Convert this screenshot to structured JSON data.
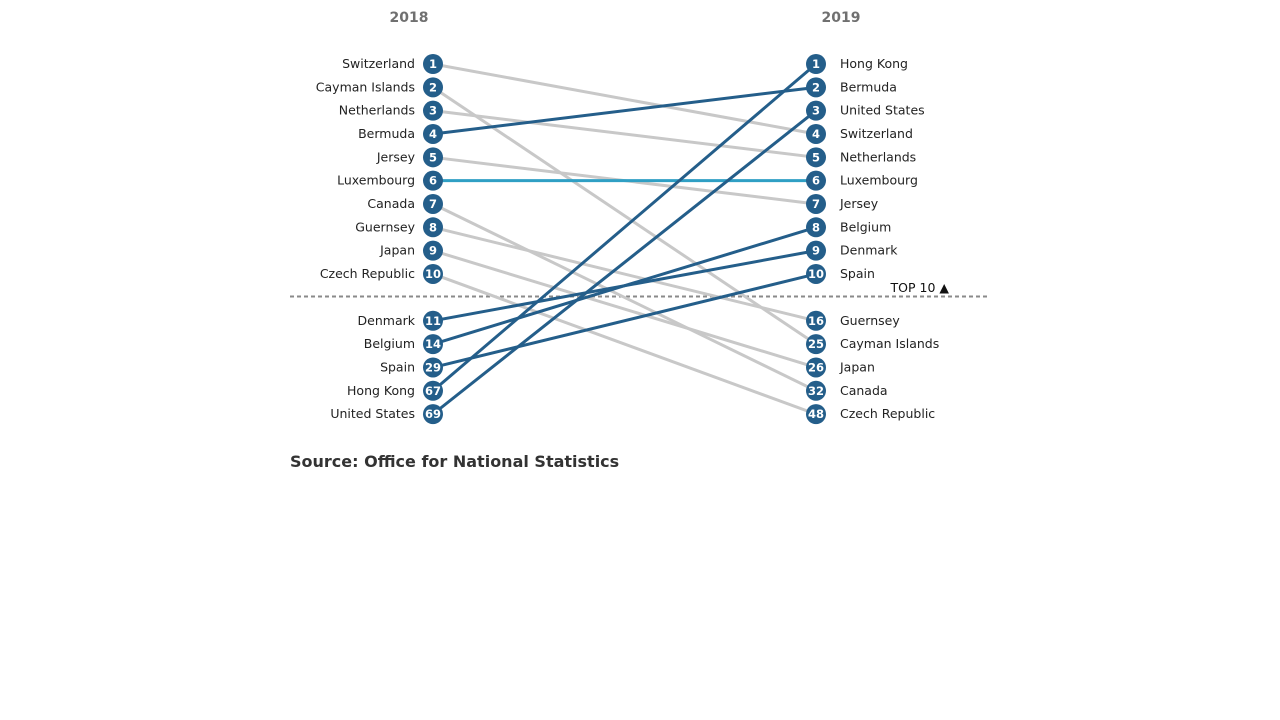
{
  "chart_data": {
    "type": "slope",
    "left_label": "2018",
    "right_label": "2019",
    "threshold_label": "TOP 10 ▲",
    "threshold_rank": 10,
    "source": "Source: Office for National Statistics",
    "colors": {
      "up": "#245e8a",
      "down": "#c8c8c8",
      "same": "#2f9fc4",
      "badge": "#245e8a",
      "divider": "#8a8a8a"
    },
    "series": [
      {
        "name": "Switzerland",
        "rank_2018": 1,
        "rank_2019": 4
      },
      {
        "name": "Cayman Islands",
        "rank_2018": 2,
        "rank_2019": 25
      },
      {
        "name": "Netherlands",
        "rank_2018": 3,
        "rank_2019": 5
      },
      {
        "name": "Bermuda",
        "rank_2018": 4,
        "rank_2019": 2
      },
      {
        "name": "Jersey",
        "rank_2018": 5,
        "rank_2019": 7
      },
      {
        "name": "Luxembourg",
        "rank_2018": 6,
        "rank_2019": 6
      },
      {
        "name": "Canada",
        "rank_2018": 7,
        "rank_2019": 32
      },
      {
        "name": "Guernsey",
        "rank_2018": 8,
        "rank_2019": 16
      },
      {
        "name": "Japan",
        "rank_2018": 9,
        "rank_2019": 26
      },
      {
        "name": "Czech Republic",
        "rank_2018": 10,
        "rank_2019": 48
      },
      {
        "name": "Denmark",
        "rank_2018": 11,
        "rank_2019": 9
      },
      {
        "name": "Belgium",
        "rank_2018": 14,
        "rank_2019": 8
      },
      {
        "name": "Spain",
        "rank_2018": 29,
        "rank_2019": 10
      },
      {
        "name": "Hong Kong",
        "rank_2018": 67,
        "rank_2019": 1
      },
      {
        "name": "United States",
        "rank_2018": 69,
        "rank_2019": 3
      }
    ]
  }
}
